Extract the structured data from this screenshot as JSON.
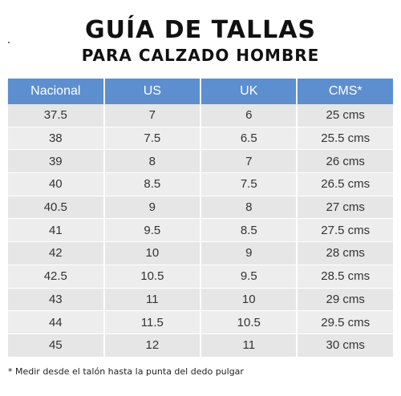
{
  "header": {
    "title": "GUÍA DE TALLAS",
    "subtitle": "PARA CALZADO HOMBRE"
  },
  "table": {
    "columns": [
      "Nacional",
      "US",
      "UK",
      "CMS*"
    ],
    "rows": [
      [
        "37.5",
        "7",
        "6",
        "25 cms"
      ],
      [
        "38",
        "7.5",
        "6.5",
        "25.5 cms"
      ],
      [
        "39",
        "8",
        "7",
        "26 cms"
      ],
      [
        "40",
        "8.5",
        "7.5",
        "26.5 cms"
      ],
      [
        "40.5",
        "9",
        "8",
        "27 cms"
      ],
      [
        "41",
        "9.5",
        "8.5",
        "27.5 cms"
      ],
      [
        "42",
        "10",
        "9",
        "28 cms"
      ],
      [
        "42.5",
        "10.5",
        "9.5",
        "28.5 cms"
      ],
      [
        "43",
        "11",
        "10",
        "29 cms"
      ],
      [
        "44",
        "11.5",
        "10.5",
        "29.5 cms"
      ],
      [
        "45",
        "12",
        "11",
        "30 cms"
      ]
    ]
  },
  "footnote": "* Medir desde el talón hasta la punta del dedo pulgar",
  "colors": {
    "header_bg": "#5d8ecf",
    "row_bg": "#e6e6e6"
  }
}
